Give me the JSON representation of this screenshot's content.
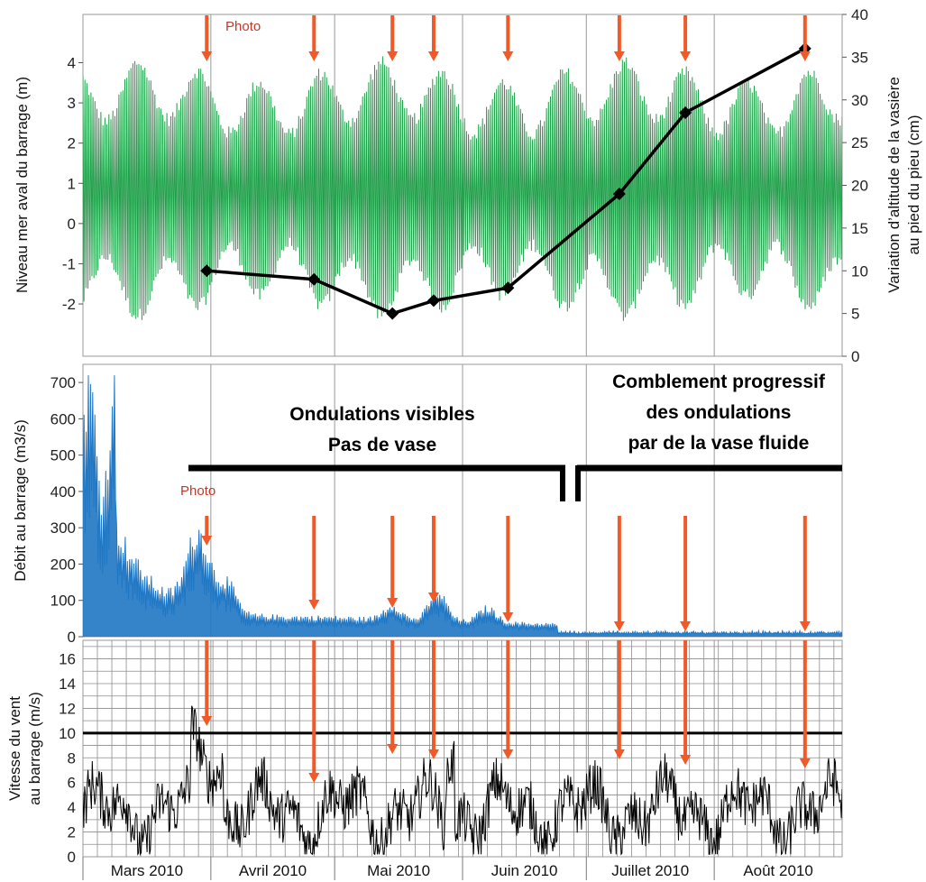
{
  "chart_data": [
    {
      "type": "line",
      "name": "tide-and-mudflat",
      "ylabel": "Niveau mer aval du barrage (m)",
      "ylim": [
        -3.3,
        5.2
      ],
      "yticks": [
        "-2",
        "-1",
        "0",
        "1",
        "2",
        "3",
        "4"
      ],
      "y2label_line1": "Variation d’altitude de la vasière",
      "y2label_line2": "au pied du pieu (cm)",
      "y2lim": [
        0,
        40
      ],
      "y2ticks": [
        "0",
        "5",
        "10",
        "15",
        "20",
        "25",
        "30",
        "35",
        "40"
      ],
      "photo_label": "Photo",
      "tide_series": {
        "color": "#20a04a",
        "mean": 0.5,
        "amplitude_range": [
          1.6,
          3.0
        ]
      },
      "mudflat_series": {
        "color": "#000000",
        "x_day": [
          30,
          56,
          75,
          85,
          103,
          130,
          146,
          175
        ],
        "y": [
          10,
          9,
          5,
          6.5,
          8,
          19,
          28.5,
          36
        ]
      }
    },
    {
      "type": "area",
      "name": "river-discharge",
      "ylabel": "Débit au barrage (m3/s)",
      "ylim": [
        0,
        750
      ],
      "yticks": [
        "0",
        "100",
        "200",
        "300",
        "400",
        "500",
        "600",
        "700"
      ],
      "photo_label": "Photo",
      "series_color": "#1f77c4",
      "annotations": {
        "left_line1": "Ondulations visibles",
        "left_line2": "Pas de vase",
        "right_line1": "Comblement progressif",
        "right_line2": "des ondulations",
        "right_line3": "par de la vase fluide"
      }
    },
    {
      "type": "line",
      "name": "wind-speed",
      "ylabel_line1": "Vitesse du vent",
      "ylabel_line2": "au barrage  (m/s)",
      "ylim": [
        0,
        17.5
      ],
      "yticks": [
        "0",
        "2",
        "4",
        "6",
        "8",
        "10",
        "12",
        "14",
        "16"
      ],
      "threshold": 10,
      "series_color": "#000000",
      "xlabels": [
        "Mars 2010",
        "Avril 2010",
        "Mai 2010",
        "Juin 2010",
        "Juillet 2010",
        "Août 2010"
      ]
    }
  ],
  "observation_days": [
    30,
    56,
    75,
    85,
    103,
    130,
    146,
    175
  ],
  "arrow_color": "#f05a28"
}
